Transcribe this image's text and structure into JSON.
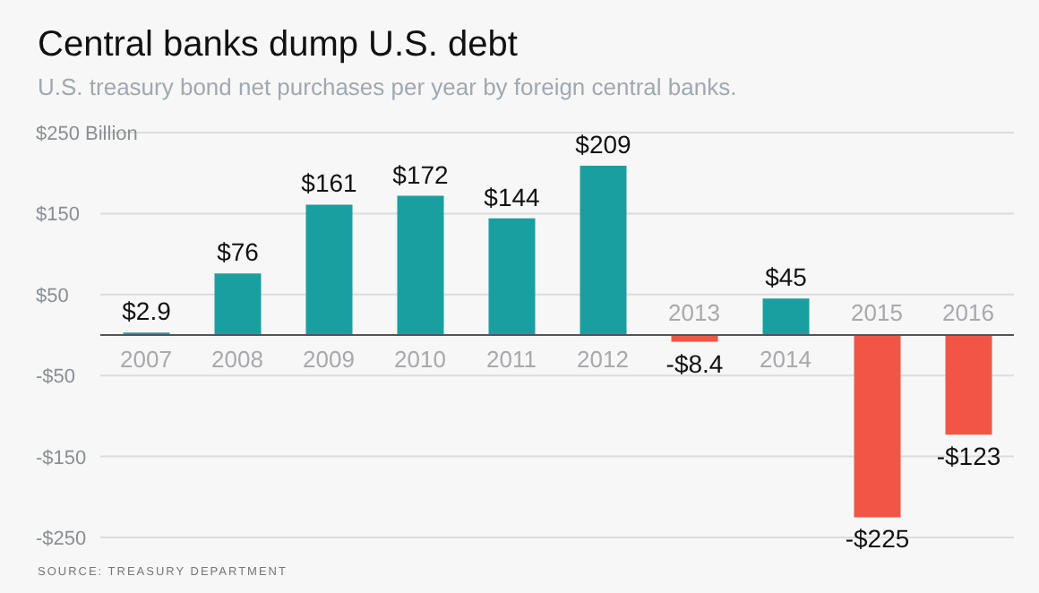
{
  "chart_data": {
    "type": "bar",
    "title": "Central banks dump U.S. debt",
    "subtitle": "U.S. treasury bond net purchases per year by foreign central banks.",
    "categories": [
      "2007",
      "2008",
      "2009",
      "2010",
      "2011",
      "2012",
      "2013",
      "2014",
      "2015",
      "2016"
    ],
    "values": [
      2.9,
      76,
      161,
      172,
      144,
      209,
      -8.4,
      45,
      -225,
      -123
    ],
    "colors": [
      "#1a9fa1",
      "#1a9fa1",
      "#1a9fa1",
      "#1a9fa1",
      "#1a9fa1",
      "#1a9fa1",
      "#f25545",
      "#1a9fa1",
      "#f25545",
      "#f25545"
    ],
    "value_labels": [
      "$2.9",
      "$76",
      "$161",
      "$172",
      "$144",
      "$209",
      "-$8.4",
      "$45",
      "-$225",
      "-$123"
    ],
    "ylim": [
      -250,
      250
    ],
    "yticks": [
      {
        "value": 250,
        "label": "$250 Billion"
      },
      {
        "value": 150,
        "label": "$150"
      },
      {
        "value": 50,
        "label": "$50"
      },
      {
        "value": -50,
        "label": "-$50"
      },
      {
        "value": -150,
        "label": "-$150"
      },
      {
        "value": -250,
        "label": "-$250"
      }
    ],
    "grid": "y",
    "annotations": [
      "SOURCE: TREASURY DEPARTMENT"
    ]
  }
}
